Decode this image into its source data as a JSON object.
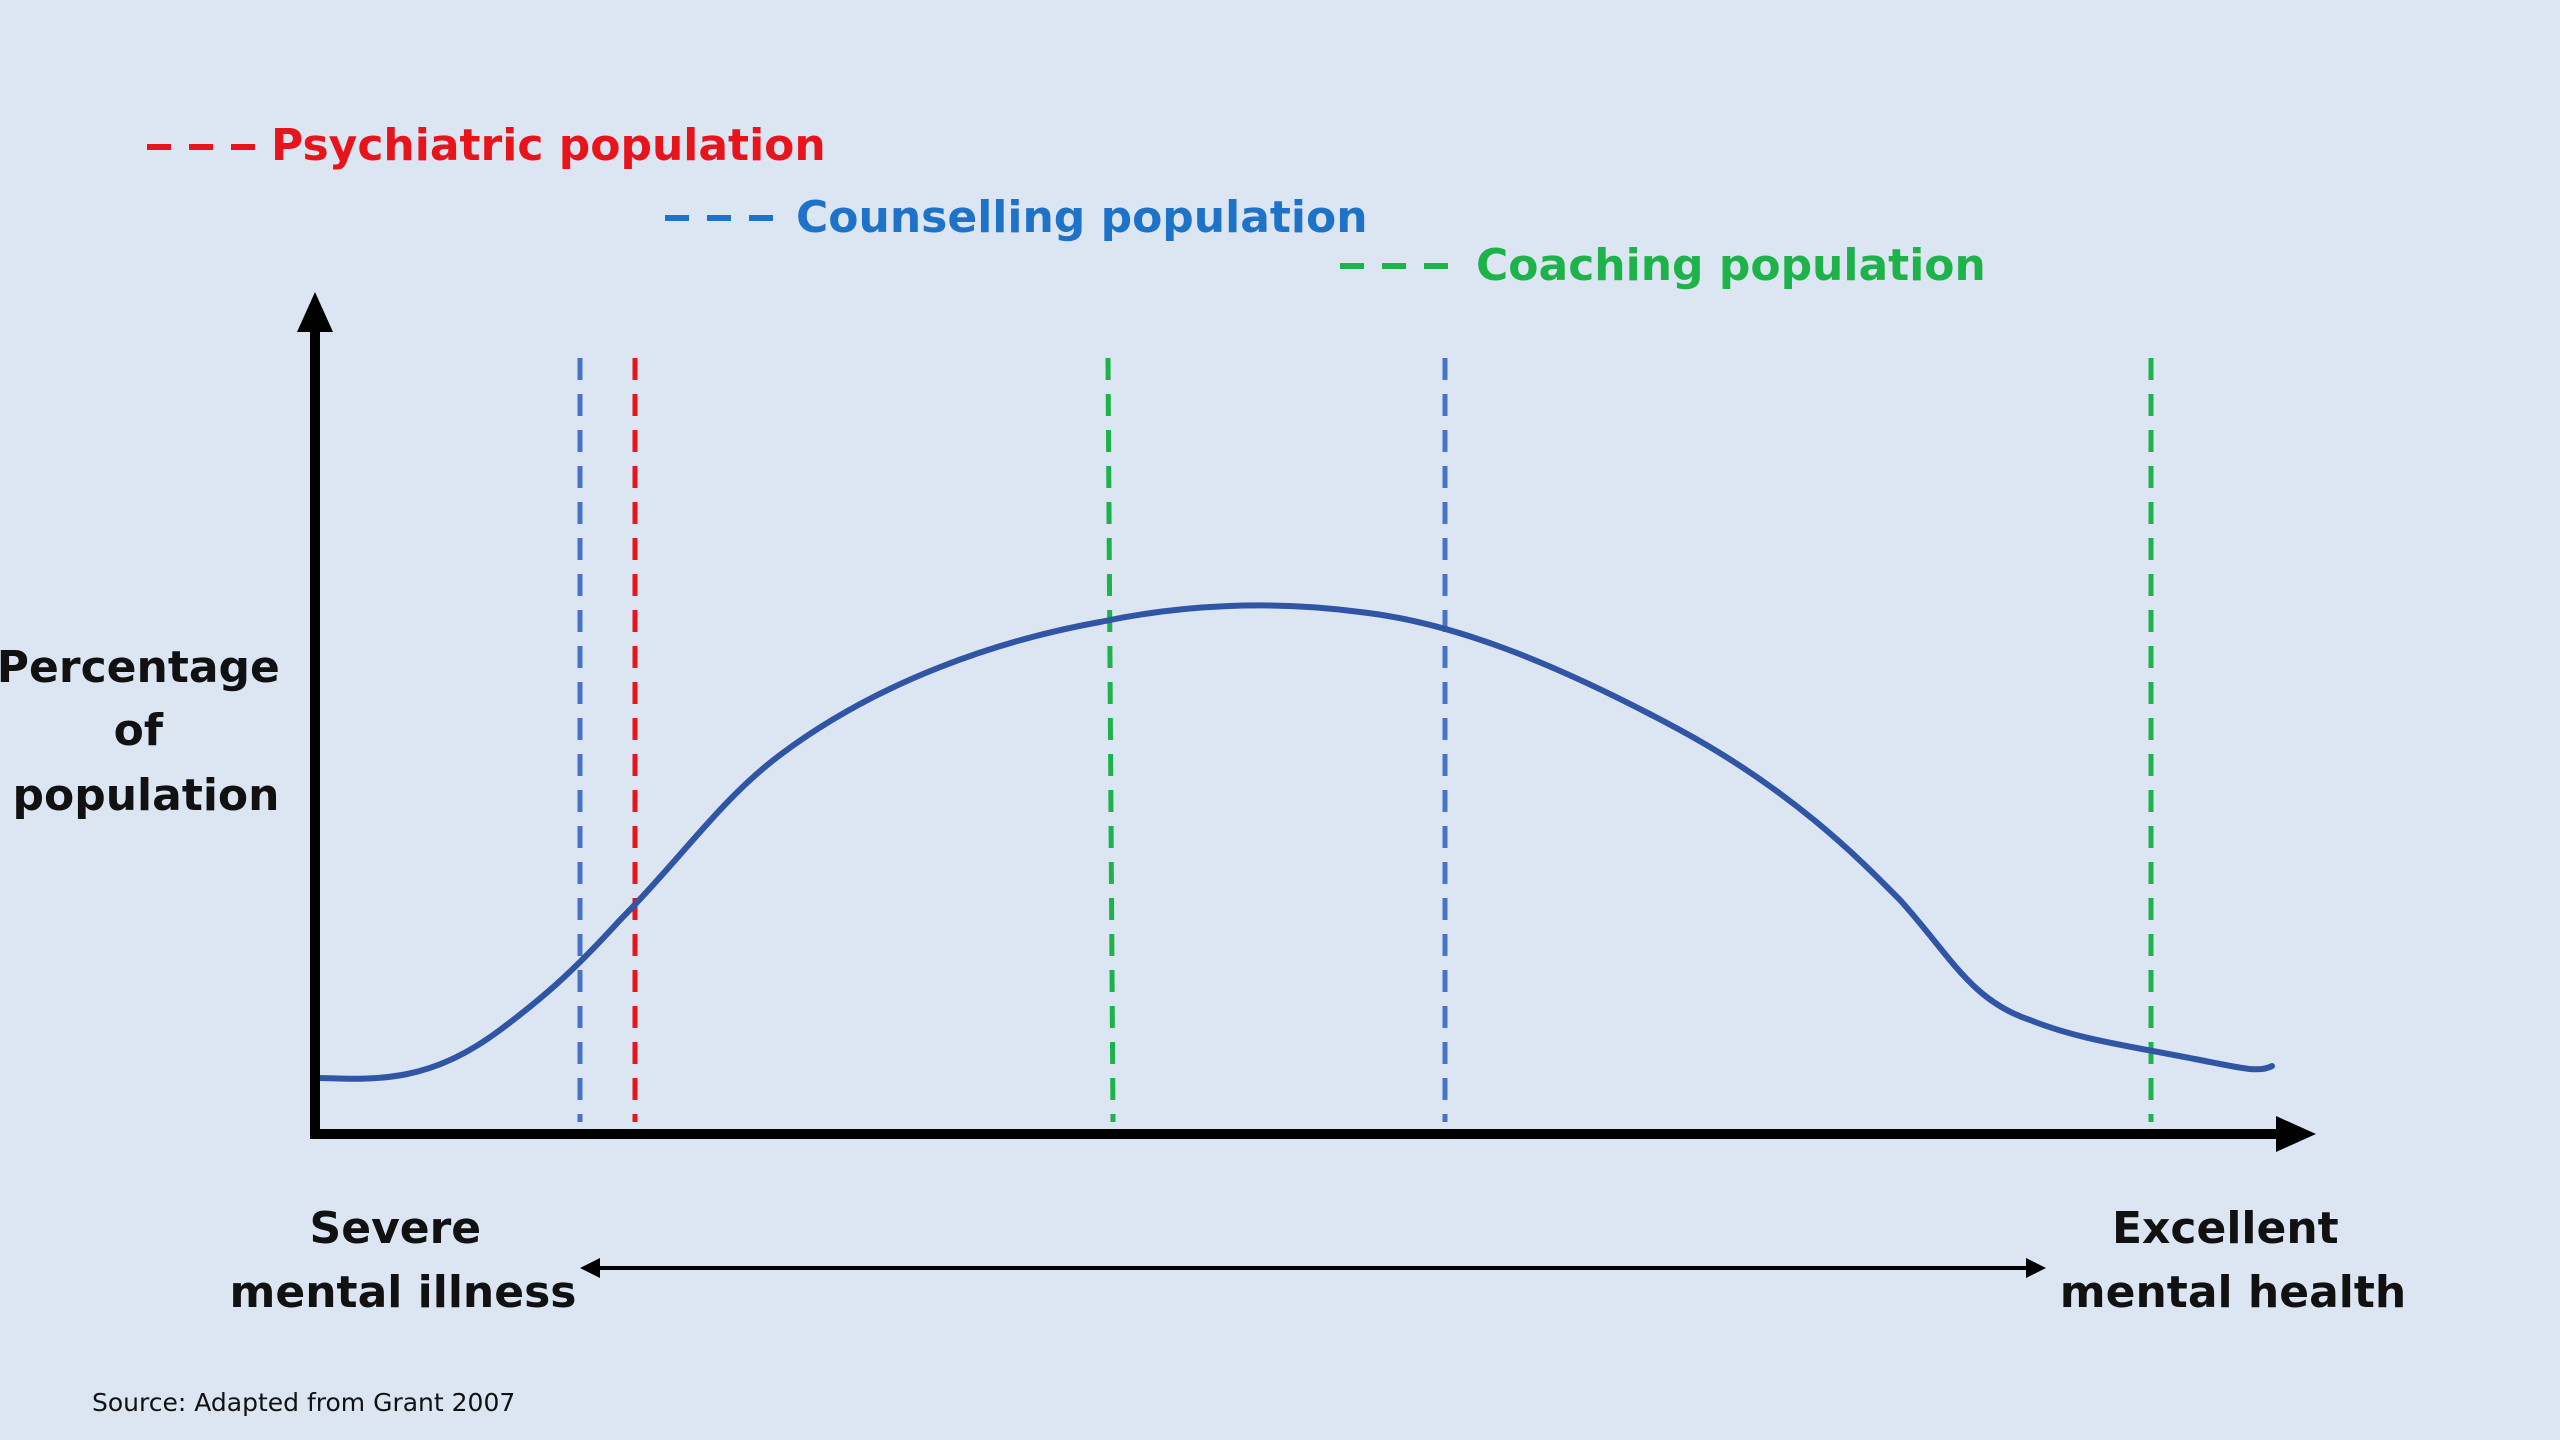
{
  "legend": [
    {
      "label": "Psychiatric population",
      "color": "#e8141c"
    },
    {
      "label": "Counselling population",
      "color": "#1e72c8"
    },
    {
      "label": "Coaching population",
      "color": "#1db34a"
    }
  ],
  "yaxis_label_lines": [
    "Percentage",
    "of",
    "population"
  ],
  "xaxis_left_lines": [
    "Severe",
    "mental illness"
  ],
  "xaxis_right_lines": [
    "Excellent",
    "mental health"
  ],
  "source": "Source: Adapted from Grant 2007",
  "colors": {
    "background": "#dce6f2",
    "axis": "#000000",
    "curve": "#2f55a4",
    "psychiatric": "#e8141c",
    "counselling_lines": "#4a72c8",
    "coaching": "#1db34a",
    "text": "#111111"
  }
}
